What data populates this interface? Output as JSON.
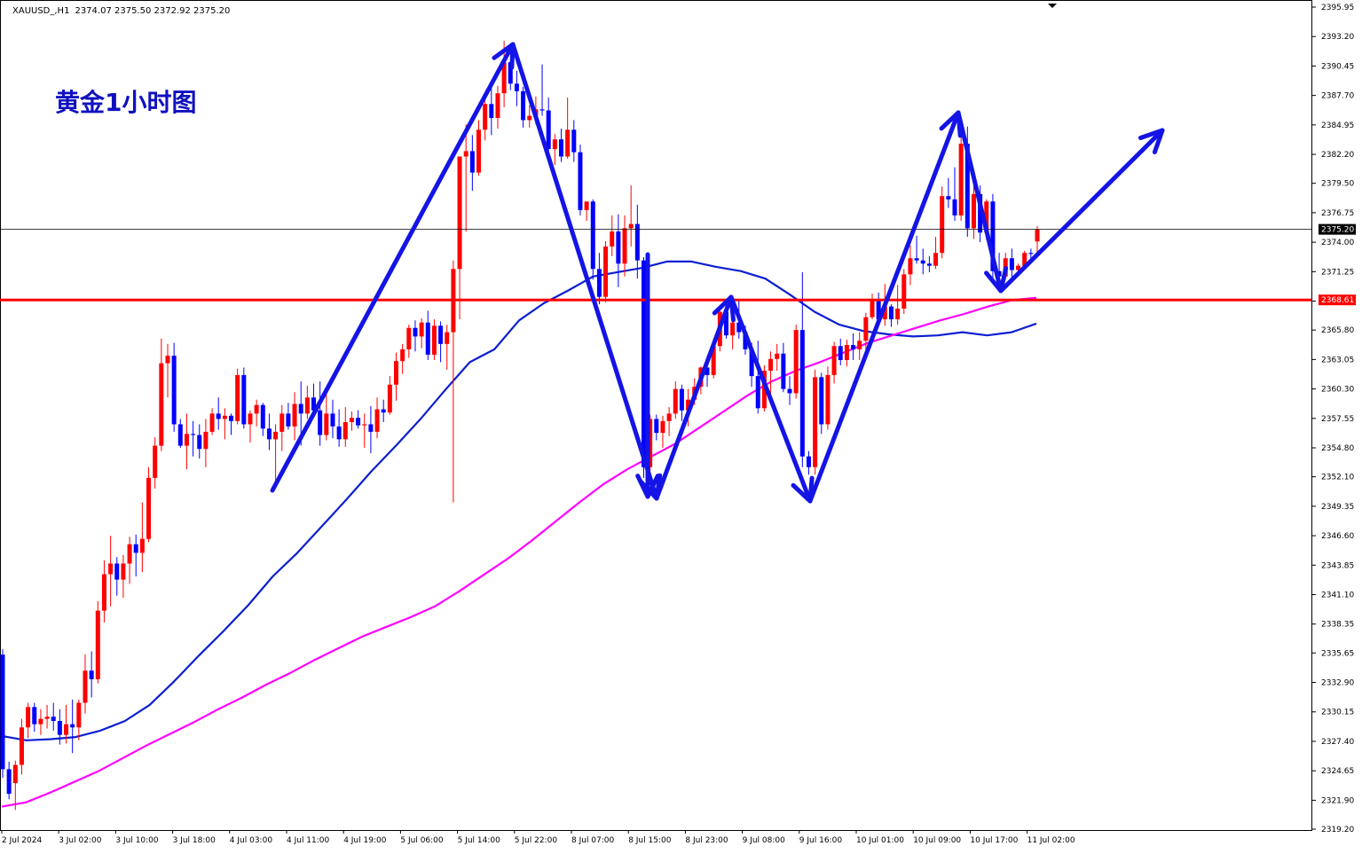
{
  "header": {
    "symbol": "XAUUSD_,H1",
    "ohlc": "2374.07 2375.50 2372.92 2375.20"
  },
  "annotation": {
    "title": "黄金1小时图"
  },
  "colors": {
    "bull": "#ff0000",
    "bear": "#0000ff",
    "ma_blue": "#0c1fd0",
    "ma_magenta": "#ff00ff",
    "support": "#ff0000",
    "arrows": "#1414e6",
    "price_line": "#000000"
  },
  "chart_data": {
    "type": "candlestick",
    "title": "黄金1小时图",
    "symbol": "XAUUSD_,H1",
    "ylim": [
      2319.2,
      2395.95
    ],
    "y_ticks": [
      "2395.95",
      "2393.20",
      "2390.45",
      "2387.70",
      "2384.95",
      "2382.20",
      "2379.50",
      "2376.75",
      "2374.00",
      "2371.25",
      "2368.50",
      "2365.80",
      "2363.05",
      "2360.30",
      "2357.55",
      "2354.80",
      "2352.10",
      "2349.35",
      "2346.60",
      "2343.85",
      "2341.10",
      "2338.35",
      "2335.65",
      "2332.90",
      "2330.15",
      "2327.40",
      "2324.65",
      "2321.90",
      "2319.20"
    ],
    "x_ticks": [
      "2 Jul 2024",
      "3 Jul 02:00",
      "3 Jul 10:00",
      "3 Jul 18:00",
      "4 Jul 03:00",
      "4 Jul 11:00",
      "4 Jul 19:00",
      "5 Jul 06:00",
      "5 Jul 14:00",
      "5 Jul 22:00",
      "8 Jul 07:00",
      "8 Jul 15:00",
      "8 Jul 23:00",
      "9 Jul 08:00",
      "9 Jul 16:00",
      "10 Jul 01:00",
      "10 Jul 09:00",
      "10 Jul 17:00",
      "11 Jul 02:00"
    ],
    "current_price": {
      "value": 2375.2,
      "label": "2375.20"
    },
    "support_line": {
      "value": 2368.61,
      "label": "2368.61"
    },
    "ohlc_last": {
      "open": 2374.07,
      "high": 2375.5,
      "low": 2372.92,
      "close": 2375.2
    },
    "candles_ohlc": [
      [
        2335.5,
        2336.0,
        2324.0,
        2324.8
      ],
      [
        2324.8,
        2325.5,
        2322.0,
        2322.5
      ],
      [
        2323.5,
        2325.6,
        2321.0,
        2325.2
      ],
      [
        2325.2,
        2329.5,
        2324.3,
        2328.7
      ],
      [
        2328.7,
        2331.0,
        2327.7,
        2330.6
      ],
      [
        2330.6,
        2331.0,
        2328.3,
        2329.0
      ],
      [
        2329.0,
        2330.4,
        2328.0,
        2329.5
      ],
      [
        2329.5,
        2330.8,
        2328.6,
        2329.7
      ],
      [
        2329.7,
        2331.0,
        2328.4,
        2329.3
      ],
      [
        2329.3,
        2330.4,
        2327.1,
        2328.0
      ],
      [
        2328.0,
        2330.8,
        2327.2,
        2329.0
      ],
      [
        2329.0,
        2331.3,
        2326.3,
        2328.7
      ],
      [
        2328.7,
        2331.3,
        2327.5,
        2331.0
      ],
      [
        2331.0,
        2335.5,
        2330.0,
        2334.0
      ],
      [
        2334.0,
        2335.8,
        2331.5,
        2333.2
      ],
      [
        2333.2,
        2340.5,
        2332.8,
        2339.6
      ],
      [
        2339.6,
        2344.3,
        2338.5,
        2343.0
      ],
      [
        2343.0,
        2346.6,
        2340.0,
        2344.0
      ],
      [
        2344.0,
        2344.6,
        2341.0,
        2342.5
      ],
      [
        2342.5,
        2344.8,
        2340.8,
        2344.0
      ],
      [
        2344.0,
        2346.5,
        2342.1,
        2345.8
      ],
      [
        2345.8,
        2346.7,
        2342.8,
        2345.0
      ],
      [
        2345.0,
        2349.7,
        2343.2,
        2346.3
      ],
      [
        2346.3,
        2353.0,
        2346.0,
        2352.0
      ],
      [
        2352.0,
        2355.8,
        2351.0,
        2355.0
      ],
      [
        2355.0,
        2365.0,
        2354.5,
        2362.7
      ],
      [
        2362.7,
        2364.5,
        2359.5,
        2363.4
      ],
      [
        2363.4,
        2364.6,
        2356.3,
        2357.0
      ],
      [
        2357.0,
        2357.5,
        2354.8,
        2355.0
      ],
      [
        2355.0,
        2358.0,
        2352.8,
        2356.1
      ],
      [
        2356.1,
        2357.3,
        2354.0,
        2356.0
      ],
      [
        2356.0,
        2357.0,
        2353.8,
        2354.7
      ],
      [
        2354.7,
        2357.5,
        2353.0,
        2356.3
      ],
      [
        2356.3,
        2358.5,
        2356.0,
        2358.0
      ],
      [
        2358.0,
        2359.5,
        2356.5,
        2357.5
      ],
      [
        2357.5,
        2358.5,
        2355.6,
        2357.8
      ],
      [
        2357.8,
        2358.0,
        2356.0,
        2357.3
      ],
      [
        2357.3,
        2362.2,
        2357.0,
        2361.6
      ],
      [
        2361.6,
        2362.3,
        2356.6,
        2357.0
      ],
      [
        2357.0,
        2358.3,
        2355.3,
        2358.0
      ],
      [
        2358.0,
        2359.3,
        2356.8,
        2358.8
      ],
      [
        2358.8,
        2359.0,
        2355.9,
        2356.6
      ],
      [
        2356.6,
        2358.0,
        2354.6,
        2355.6
      ],
      [
        2355.6,
        2357.0,
        2351.6,
        2356.3
      ],
      [
        2356.3,
        2358.8,
        2354.5,
        2358.0
      ],
      [
        2358.0,
        2359.0,
        2356.5,
        2356.8
      ],
      [
        2356.8,
        2360.0,
        2355.5,
        2358.9
      ],
      [
        2358.9,
        2361.0,
        2355.0,
        2358.0
      ],
      [
        2358.0,
        2360.6,
        2357.5,
        2359.5
      ],
      [
        2359.5,
        2360.8,
        2357.6,
        2358.3
      ],
      [
        2358.3,
        2361.0,
        2355.0,
        2356.0
      ],
      [
        2356.0,
        2359.8,
        2355.5,
        2358.0
      ],
      [
        2358.0,
        2359.3,
        2355.7,
        2356.8
      ],
      [
        2356.8,
        2358.4,
        2354.9,
        2355.6
      ],
      [
        2355.6,
        2358.6,
        2354.9,
        2357.2
      ],
      [
        2357.2,
        2358.2,
        2356.4,
        2357.6
      ],
      [
        2357.6,
        2358.3,
        2356.6,
        2356.9
      ],
      [
        2356.9,
        2358.0,
        2354.8,
        2357.0
      ],
      [
        2357.0,
        2358.7,
        2354.3,
        2356.3
      ],
      [
        2356.3,
        2359.5,
        2355.7,
        2358.4
      ],
      [
        2358.4,
        2359.3,
        2357.2,
        2358.1
      ],
      [
        2358.1,
        2361.5,
        2357.9,
        2360.7
      ],
      [
        2360.7,
        2363.7,
        2359.2,
        2362.9
      ],
      [
        2362.9,
        2364.5,
        2361.7,
        2364.0
      ],
      [
        2364.0,
        2366.3,
        2363.2,
        2366.0
      ],
      [
        2366.0,
        2366.7,
        2363.8,
        2365.2
      ],
      [
        2365.2,
        2366.9,
        2364.1,
        2366.5
      ],
      [
        2366.5,
        2367.6,
        2363.0,
        2363.5
      ],
      [
        2363.5,
        2366.8,
        2363.0,
        2366.2
      ],
      [
        2366.2,
        2366.6,
        2362.8,
        2364.5
      ],
      [
        2364.5,
        2366.3,
        2362.1,
        2365.6
      ],
      [
        2365.6,
        2372.3,
        2349.7,
        2371.5
      ],
      [
        2371.5,
        2379.5,
        2366.8,
        2382.0
      ],
      [
        2382.0,
        2385.0,
        2375.0,
        2382.5
      ],
      [
        2382.5,
        2384.0,
        2378.8,
        2380.5
      ],
      [
        2380.5,
        2385.4,
        2380.2,
        2384.5
      ],
      [
        2384.5,
        2388.0,
        2383.5,
        2386.9
      ],
      [
        2386.9,
        2388.5,
        2384.0,
        2385.6
      ],
      [
        2385.6,
        2388.6,
        2384.6,
        2387.9
      ],
      [
        2387.9,
        2392.8,
        2386.6,
        2390.8
      ],
      [
        2390.8,
        2391.0,
        2388.2,
        2388.8
      ],
      [
        2388.8,
        2390.0,
        2386.7,
        2388.1
      ],
      [
        2388.1,
        2388.5,
        2384.7,
        2385.4
      ],
      [
        2385.4,
        2386.8,
        2384.7,
        2385.8
      ],
      [
        2385.8,
        2387.6,
        2385.0,
        2386.4
      ],
      [
        2386.4,
        2390.6,
        2385.8,
        2386.3
      ],
      [
        2386.3,
        2387.5,
        2381.6,
        2382.7
      ],
      [
        2382.7,
        2384.1,
        2381.2,
        2383.6
      ],
      [
        2383.6,
        2384.6,
        2381.5,
        2382.0
      ],
      [
        2382.0,
        2387.5,
        2381.8,
        2384.5
      ],
      [
        2384.5,
        2385.4,
        2381.5,
        2382.4
      ],
      [
        2382.4,
        2383.1,
        2376.5,
        2377.0
      ],
      [
        2377.0,
        2377.8,
        2376.0,
        2377.8
      ],
      [
        2377.8,
        2378.0,
        2370.5,
        2371.5
      ],
      [
        2371.5,
        2373.0,
        2368.2,
        2368.9
      ],
      [
        2368.9,
        2374.1,
        2368.4,
        2373.6
      ],
      [
        2373.6,
        2376.5,
        2372.7,
        2375.0
      ],
      [
        2375.0,
        2376.6,
        2369.8,
        2372.0
      ],
      [
        2372.0,
        2376.5,
        2370.8,
        2375.3
      ],
      [
        2375.3,
        2379.3,
        2373.6,
        2375.7
      ],
      [
        2375.7,
        2377.5,
        2370.6,
        2372.3
      ],
      [
        2372.3,
        2372.6,
        2352.0,
        2353.0
      ],
      [
        2353.0,
        2357.9,
        2352.5,
        2357.5
      ],
      [
        2357.5,
        2357.9,
        2355.5,
        2356.2
      ],
      [
        2356.2,
        2357.8,
        2354.8,
        2357.3
      ],
      [
        2357.3,
        2358.6,
        2355.9,
        2358.0
      ],
      [
        2358.0,
        2361.0,
        2357.5,
        2360.3
      ],
      [
        2360.3,
        2360.7,
        2357.3,
        2358.3
      ],
      [
        2358.3,
        2360.3,
        2356.8,
        2359.3
      ],
      [
        2359.3,
        2361.3,
        2358.8,
        2360.5
      ],
      [
        2360.5,
        2362.4,
        2359.8,
        2362.3
      ],
      [
        2362.3,
        2363.4,
        2360.5,
        2361.6
      ],
      [
        2361.6,
        2364.7,
        2361.3,
        2364.3
      ],
      [
        2364.3,
        2367.7,
        2363.8,
        2367.5
      ],
      [
        2367.5,
        2368.3,
        2365.0,
        2365.3
      ],
      [
        2365.3,
        2366.8,
        2364.0,
        2366.5
      ],
      [
        2366.5,
        2368.7,
        2365.0,
        2365.6
      ],
      [
        2365.6,
        2366.2,
        2363.5,
        2364.0
      ],
      [
        2364.0,
        2364.6,
        2360.5,
        2361.5
      ],
      [
        2361.5,
        2364.8,
        2358.0,
        2358.5
      ],
      [
        2358.5,
        2362.5,
        2358.2,
        2362.0
      ],
      [
        2362.0,
        2363.8,
        2359.1,
        2363.1
      ],
      [
        2363.1,
        2364.5,
        2362.0,
        2363.6
      ],
      [
        2363.6,
        2364.6,
        2360.0,
        2360.3
      ],
      [
        2360.3,
        2361.5,
        2358.8,
        2359.9
      ],
      [
        2359.9,
        2366.3,
        2359.4,
        2365.8
      ],
      [
        2365.8,
        2371.2,
        2353.0,
        2354.0
      ],
      [
        2354.0,
        2354.5,
        2352.3,
        2353.0
      ],
      [
        2353.0,
        2362.1,
        2352.3,
        2361.4
      ],
      [
        2361.4,
        2361.8,
        2356.1,
        2357.0
      ],
      [
        2357.0,
        2362.4,
        2356.5,
        2361.6
      ],
      [
        2361.6,
        2364.7,
        2360.8,
        2364.3
      ],
      [
        2364.3,
        2365.0,
        2362.5,
        2363.0
      ],
      [
        2363.0,
        2364.9,
        2362.4,
        2364.4
      ],
      [
        2364.4,
        2365.5,
        2363.0,
        2364.0
      ],
      [
        2364.0,
        2365.6,
        2363.0,
        2364.8
      ],
      [
        2364.8,
        2367.4,
        2364.0,
        2367.0
      ],
      [
        2367.0,
        2369.2,
        2366.8,
        2368.6
      ],
      [
        2368.6,
        2369.3,
        2366.2,
        2366.8
      ],
      [
        2366.8,
        2370.1,
        2366.2,
        2368.0
      ],
      [
        2368.0,
        2368.2,
        2366.1,
        2366.8
      ],
      [
        2366.8,
        2370.0,
        2366.3,
        2367.8
      ],
      [
        2367.8,
        2371.5,
        2367.3,
        2371.0
      ],
      [
        2371.0,
        2373.7,
        2370.0,
        2372.5
      ],
      [
        2372.5,
        2374.6,
        2372.0,
        2372.3
      ],
      [
        2372.3,
        2373.4,
        2371.0,
        2372.0
      ],
      [
        2372.0,
        2372.7,
        2371.2,
        2371.8
      ],
      [
        2371.8,
        2374.5,
        2371.5,
        2373.0
      ],
      [
        2373.0,
        2379.2,
        2372.5,
        2378.3
      ],
      [
        2378.3,
        2380.0,
        2377.2,
        2378.0
      ],
      [
        2378.0,
        2381.0,
        2376.0,
        2376.5
      ],
      [
        2376.5,
        2384.4,
        2376.0,
        2383.2
      ],
      [
        2383.2,
        2384.8,
        2374.5,
        2375.3
      ],
      [
        2375.3,
        2379.5,
        2374.3,
        2378.5
      ],
      [
        2378.5,
        2379.3,
        2374.0,
        2374.9
      ],
      [
        2374.9,
        2378.0,
        2374.2,
        2377.8
      ],
      [
        2377.8,
        2378.5,
        2370.5,
        2371.3
      ],
      [
        2371.3,
        2373.0,
        2370.0,
        2370.8
      ],
      [
        2370.8,
        2373.0,
        2370.5,
        2372.5
      ],
      [
        2372.5,
        2373.4,
        2370.5,
        2371.4
      ],
      [
        2371.4,
        2372.0,
        2370.8,
        2371.8
      ],
      [
        2371.8,
        2373.2,
        2371.4,
        2373.0
      ],
      [
        2373.0,
        2373.4,
        2372.2,
        2372.9
      ],
      [
        2374.07,
        2375.5,
        2372.92,
        2375.2
      ]
    ],
    "moving_averages": [
      {
        "color": "#0c1fd0",
        "values": [
          2327.9,
          2327.5,
          2327.6,
          2327.8,
          2328.4,
          2329.3,
          2330.8,
          2333.0,
          2335.4,
          2337.7,
          2340.1,
          2342.8,
          2345.0,
          2347.5,
          2350.0,
          2352.6,
          2355.0,
          2357.5,
          2360.2,
          2362.8,
          2364.0,
          2366.7,
          2368.3,
          2369.5,
          2370.8,
          2371.2,
          2371.6,
          2372.2,
          2372.2,
          2371.7,
          2371.3,
          2370.6,
          2369.1,
          2367.5,
          2366.3,
          2365.7,
          2365.4,
          2365.2,
          2365.3,
          2365.6,
          2365.3,
          2365.6,
          2366.4
        ]
      },
      {
        "color": "#ff00ff",
        "values": [
          2321.3,
          2321.7,
          2322.6,
          2323.6,
          2324.6,
          2325.8,
          2327.0,
          2328.1,
          2329.2,
          2330.4,
          2331.5,
          2332.7,
          2333.8,
          2335.0,
          2336.1,
          2337.2,
          2338.1,
          2339.0,
          2340.0,
          2341.4,
          2342.9,
          2344.4,
          2346.1,
          2347.9,
          2349.7,
          2351.4,
          2352.8,
          2354.0,
          2355.2,
          2356.7,
          2358.2,
          2359.7,
          2361.0,
          2362.0,
          2362.8,
          2363.7,
          2364.6,
          2365.3,
          2366.0,
          2366.7,
          2367.3,
          2368.0,
          2368.6,
          2368.8
        ]
      }
    ]
  }
}
